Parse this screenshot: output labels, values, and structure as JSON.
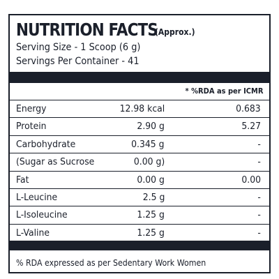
{
  "header": {
    "title": "NUTRITION FACTS",
    "note": "(Approx.)",
    "serving_size": "Serving Size - 1 Scoop (6 g)",
    "servings_per_container": "Servings Per Container - 41"
  },
  "table": {
    "rda_header": "* %RDA as per ICMR",
    "rows": [
      [
        "Energy",
        "12.98 kcal",
        "0.683"
      ],
      [
        "Protein",
        "2.90 g",
        "5.27"
      ],
      [
        "Carbohydrate",
        "0.345 g",
        "-"
      ],
      [
        "(Sugar as Sucrose",
        "0.00 g)",
        "-"
      ],
      [
        "Fat",
        "0.00 g",
        "0.00"
      ],
      [
        "L-Leucine",
        "2.5 g",
        "-"
      ],
      [
        "L-Isoleucine",
        "1.25 g",
        "-"
      ],
      [
        "L-Valine",
        "1.25 g",
        "-"
      ]
    ]
  },
  "footer": "% RDA expressed as per Sedentary Work Women"
}
